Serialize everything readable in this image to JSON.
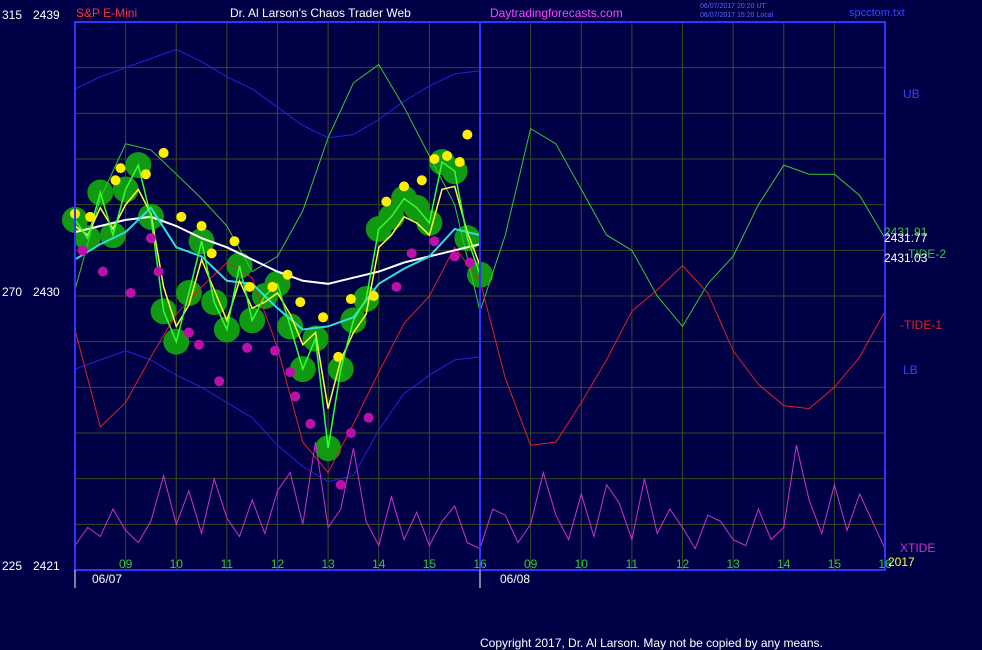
{
  "header": {
    "left_code": "315",
    "left_price": "2439",
    "instrument": "S&P E-Mini",
    "title": "Dr. Al Larson's Chaos Trader Web",
    "site": "Daytradingforecasts.com",
    "timestamp1": "06/07/2017 20:20 UT",
    "timestamp2": "06/07/2017 15:20 Local",
    "filename": "spcctom.txt"
  },
  "footer": {
    "copyright": "Copyright 2017, Dr. Al Larson. May not be copied by any means."
  },
  "colors": {
    "background": "#000046",
    "frame": "#3333ff",
    "grid": "#3a4a1e",
    "ub_lb": "#2222dd",
    "tide2": "#33cc33",
    "tide1": "#dd2222",
    "xtide": "#cc33cc",
    "ma_white": "#ffffff",
    "ma_cyan": "#33dddd",
    "ma_yellow": "#ffff33",
    "price_bar": "#33ff33",
    "halo": "#119911",
    "high_dot": "#ffee00",
    "low_dot": "#bb11aa"
  },
  "chart_data": {
    "type": "line",
    "instrument": "S&P E-Mini",
    "y_scale": [
      {
        "code": "315",
        "price": "2439"
      },
      {
        "code": "270",
        "price": "2430"
      },
      {
        "code": "225",
        "price": "2421"
      }
    ],
    "ylim": [
      2421,
      2439
    ],
    "x_ticks": [
      "09",
      "10",
      "11",
      "12",
      "13",
      "14",
      "15",
      "16",
      "09",
      "10",
      "11",
      "12",
      "13",
      "14",
      "15",
      "16"
    ],
    "dates": [
      "06/07",
      "06/08"
    ],
    "year_label": "2017",
    "right_values": [
      "2431.91",
      "2431.77",
      "2431.03"
    ],
    "series": [
      {
        "name": "UB",
        "color": "#2222dd",
        "x": [
          0,
          0.5,
          1,
          1.5,
          2,
          2.5,
          3,
          3.5,
          4,
          4.5,
          5,
          5.5,
          6,
          6.5,
          7,
          7.5,
          8
        ],
        "y": [
          2436.8,
          2437.2,
          2437.5,
          2437.8,
          2438.1,
          2437.7,
          2437.2,
          2436.8,
          2436.2,
          2435.6,
          2435.2,
          2435.3,
          2435.8,
          2436.4,
          2436.9,
          2437.3,
          2437.4
        ]
      },
      {
        "name": "LB",
        "color": "#2222dd",
        "x": [
          0,
          0.5,
          1,
          1.5,
          2,
          2.5,
          3,
          3.5,
          4,
          4.5,
          5,
          5.5,
          6,
          6.5,
          7,
          7.5,
          8
        ],
        "y": [
          2427.6,
          2427.9,
          2428.2,
          2427.9,
          2427.4,
          2427.0,
          2426.5,
          2426.0,
          2425.1,
          2424.4,
          2423.9,
          2424.1,
          2425.6,
          2426.8,
          2427.4,
          2427.9,
          2428.0
        ]
      },
      {
        "name": "TIDE-2",
        "color": "#33cc33",
        "x": [
          0,
          0.5,
          1,
          1.5,
          2,
          2.5,
          3,
          3.5,
          4,
          4.5,
          5,
          5.5,
          6,
          6.5,
          7,
          7.5,
          8,
          8.5,
          9,
          9.5,
          10,
          10.5,
          11,
          11.5,
          12,
          12.5,
          13,
          13.5,
          14,
          14.5,
          15,
          15.5,
          16
        ],
        "y": [
          2430.2,
          2433.2,
          2435.0,
          2434.8,
          2434.0,
          2433.2,
          2432.3,
          2430.8,
          2431.3,
          2432.8,
          2435.2,
          2437.0,
          2437.6,
          2436.2,
          2434.6,
          2433.0,
          2429.5,
          2432.0,
          2435.5,
          2435.0,
          2433.5,
          2432.0,
          2431.5,
          2430.0,
          2429.0,
          2430.4,
          2431.3,
          2433.0,
          2434.3,
          2434.0,
          2434.0,
          2433.3,
          2431.9
        ]
      },
      {
        "name": "-TIDE-1",
        "color": "#dd2222",
        "x": [
          0,
          0.5,
          1,
          1.5,
          2,
          2.5,
          3,
          3.5,
          4,
          4.5,
          5,
          5.5,
          6,
          6.5,
          7,
          7.5,
          8,
          8.5,
          9,
          9.5,
          10,
          10.5,
          11,
          11.5,
          12,
          12.5,
          13,
          13.5,
          14,
          14.5,
          15,
          15.5,
          16
        ],
        "y": [
          2428.9,
          2425.7,
          2426.5,
          2428.0,
          2429.4,
          2430.3,
          2431.1,
          2430.6,
          2428.3,
          2425.2,
          2424.2,
          2425.8,
          2427.5,
          2429.1,
          2430.0,
          2431.6,
          2430.5,
          2427.3,
          2425.1,
          2425.2,
          2426.5,
          2427.9,
          2429.5,
          2430.2,
          2431.0,
          2430.1,
          2428.2,
          2427.1,
          2426.4,
          2426.3,
          2427.0,
          2428.0,
          2429.5
        ]
      },
      {
        "name": "XTIDE",
        "color": "#cc33cc",
        "x": [
          0,
          0.25,
          0.5,
          0.75,
          1,
          1.25,
          1.5,
          1.75,
          2,
          2.25,
          2.5,
          2.75,
          3,
          3.25,
          3.5,
          3.75,
          4,
          4.25,
          4.5,
          4.75,
          5,
          5.25,
          5.5,
          5.75,
          6,
          6.25,
          6.5,
          6.75,
          7,
          7.25,
          7.5,
          7.75,
          8,
          8.25,
          8.5,
          8.75,
          9,
          9.25,
          9.5,
          9.75,
          10,
          10.25,
          10.5,
          10.75,
          11,
          11.25,
          11.5,
          11.75,
          12,
          12.25,
          12.5,
          12.75,
          13,
          13.25,
          13.5,
          13.75,
          14,
          14.25,
          14.5,
          14.75,
          15,
          15.25,
          15.5,
          15.75,
          16
        ],
        "y": [
          2421.8,
          2422.4,
          2422.1,
          2423.0,
          2422.3,
          2421.9,
          2422.6,
          2424.1,
          2422.5,
          2423.6,
          2422.2,
          2424.0,
          2422.7,
          2422.1,
          2423.3,
          2422.2,
          2423.6,
          2424.2,
          2422.5,
          2425.2,
          2422.4,
          2423.0,
          2425.0,
          2422.6,
          2421.8,
          2423.4,
          2422.0,
          2422.9,
          2421.8,
          2422.6,
          2423.1,
          2421.9,
          2421.7,
          2423.0,
          2422.8,
          2421.9,
          2422.5,
          2424.2,
          2422.8,
          2422.0,
          2423.5,
          2422.1,
          2423.8,
          2423.2,
          2422.0,
          2424.0,
          2422.2,
          2423.0,
          2422.4,
          2421.7,
          2422.8,
          2422.6,
          2422.0,
          2421.8,
          2423.0,
          2422.0,
          2422.4,
          2425.1,
          2423.3,
          2422.2,
          2423.8,
          2422.3,
          2423.5,
          2422.6,
          2421.7
        ]
      },
      {
        "name": "MA-white",
        "color": "#ffffff",
        "x": [
          0,
          0.5,
          1,
          1.5,
          2,
          2.5,
          3,
          3.5,
          4,
          4.5,
          5,
          5.5,
          6,
          6.5,
          7,
          7.5,
          8
        ],
        "y": [
          2432.1,
          2432.3,
          2432.5,
          2432.6,
          2432.3,
          2431.9,
          2431.6,
          2431.2,
          2430.8,
          2430.5,
          2430.4,
          2430.6,
          2430.8,
          2431.1,
          2431.3,
          2431.5,
          2431.7
        ]
      },
      {
        "name": "MA-cyan",
        "color": "#33dddd",
        "x": [
          0,
          0.5,
          1,
          1.5,
          2,
          2.5,
          3,
          3.5,
          4,
          4.5,
          5,
          5.5,
          6,
          6.5,
          7,
          7.5,
          8
        ],
        "y": [
          2431.2,
          2431.7,
          2432.1,
          2432.9,
          2431.6,
          2431.3,
          2430.5,
          2430.4,
          2429.6,
          2428.9,
          2429.0,
          2429.3,
          2430.4,
          2430.9,
          2431.3,
          2432.2,
          2432.0
        ]
      },
      {
        "name": "MA-yellow",
        "color": "#ffff33",
        "x": [
          0,
          0.25,
          0.5,
          0.75,
          1,
          1.25,
          1.5,
          1.75,
          2,
          2.25,
          2.5,
          2.75,
          3,
          3.25,
          3.5,
          3.75,
          4,
          4.25,
          4.5,
          4.75,
          5,
          5.25,
          5.5,
          5.75,
          6,
          6.25,
          6.5,
          6.75,
          7,
          7.25,
          7.5,
          7.75,
          8
        ],
        "y": [
          2432.3,
          2432.0,
          2432.9,
          2432.2,
          2433.0,
          2433.5,
          2432.7,
          2430.3,
          2429.0,
          2429.7,
          2431.2,
          2430.2,
          2429.2,
          2430.5,
          2429.6,
          2429.8,
          2430.1,
          2429.4,
          2428.4,
          2428.8,
          2426.3,
          2427.9,
          2428.8,
          2429.4,
          2431.6,
          2432.0,
          2432.6,
          2432.4,
          2432.0,
          2433.5,
          2433.6,
          2432.1,
          2431.0
        ]
      },
      {
        "name": "Price",
        "color": "#33ff33",
        "x": [
          0,
          0.25,
          0.5,
          0.75,
          1,
          1.25,
          1.5,
          1.75,
          2,
          2.25,
          2.5,
          2.75,
          3,
          3.25,
          3.5,
          3.75,
          4,
          4.25,
          4.5,
          4.75,
          5,
          5.25,
          5.5,
          5.75,
          6,
          6.25,
          6.5,
          6.75,
          7,
          7.25,
          7.5,
          7.75,
          8
        ],
        "y": [
          2432.5,
          2431.9,
          2433.4,
          2432.0,
          2433.5,
          2434.3,
          2432.6,
          2429.5,
          2428.5,
          2430.1,
          2431.8,
          2429.8,
          2428.9,
          2431.0,
          2429.2,
          2430.0,
          2430.4,
          2429.0,
          2427.6,
          2428.6,
          2425.0,
          2427.6,
          2429.2,
          2429.9,
          2432.2,
          2432.6,
          2433.2,
          2432.9,
          2432.4,
          2434.4,
          2434.1,
          2431.9,
          2430.7
        ]
      }
    ],
    "high_markers": {
      "x": [
        0.0,
        0.3,
        0.8,
        0.9,
        1.4,
        1.75,
        2.1,
        2.5,
        2.7,
        3.15,
        3.45,
        3.9,
        4.2,
        4.45,
        4.9,
        5.2,
        5.45,
        5.9,
        6.15,
        6.5,
        6.85,
        7.1,
        7.35,
        7.6,
        7.75
      ],
      "y": [
        2432.7,
        2432.6,
        2433.8,
        2434.2,
        2434.0,
        2434.7,
        2432.6,
        2432.3,
        2431.4,
        2431.8,
        2430.3,
        2430.3,
        2430.7,
        2429.8,
        2429.3,
        2428.0,
        2429.9,
        2430.0,
        2433.1,
        2433.6,
        2433.8,
        2434.5,
        2434.6,
        2434.4,
        2435.3
      ]
    },
    "low_markers": {
      "x": [
        0.15,
        0.55,
        1.1,
        1.5,
        1.65,
        2.25,
        2.45,
        2.85,
        3.4,
        3.95,
        4.25,
        4.35,
        4.65,
        5.25,
        5.45,
        5.8,
        6.35,
        6.65,
        7.1,
        7.5,
        7.8
      ],
      "y": [
        2431.5,
        2430.8,
        2430.1,
        2431.9,
        2430.8,
        2428.8,
        2428.4,
        2427.2,
        2428.3,
        2428.2,
        2427.5,
        2426.7,
        2425.8,
        2423.8,
        2425.5,
        2426.0,
        2430.3,
        2431.4,
        2431.8,
        2431.3,
        2431.1
      ]
    }
  }
}
